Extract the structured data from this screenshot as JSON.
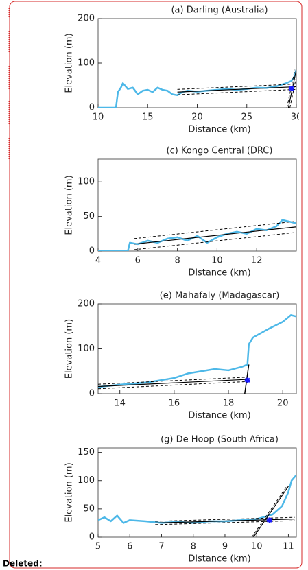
{
  "chart_data": [
    {
      "type": "line",
      "title": "(a) Darling (Australia)",
      "xlabel": "Distance (km)",
      "ylabel": "Elevation (m)",
      "xlim": [
        10,
        30
      ],
      "ylim": [
        0,
        200
      ],
      "xticks": [
        10,
        15,
        20,
        25,
        30
      ],
      "yticks": [
        0,
        100,
        200
      ],
      "series": [
        {
          "color": "#4db8e8",
          "width": 2.5,
          "x": [
            10,
            11.8,
            12,
            12.3,
            12.5,
            13,
            13.5,
            14,
            14.5,
            15,
            15.5,
            16,
            16.5,
            17,
            17.5,
            18,
            18.5,
            19,
            20,
            21,
            22,
            23,
            24,
            25,
            26,
            27,
            28,
            29,
            29.5,
            29.8,
            30
          ],
          "values": [
            0,
            0,
            35,
            45,
            55,
            42,
            45,
            30,
            38,
            40,
            35,
            45,
            40,
            38,
            30,
            28,
            35,
            38,
            36,
            38,
            40,
            42,
            40,
            42,
            45,
            44,
            48,
            55,
            60,
            70,
            85
          ]
        },
        {
          "color": "#000000",
          "width": 1.2,
          "x": [
            18,
            30
          ],
          "values": [
            35,
            47
          ]
        },
        {
          "color": "#000000",
          "width": 1,
          "dashed": true,
          "x": [
            18,
            30
          ],
          "values": [
            41,
            53
          ]
        },
        {
          "color": "#000000",
          "width": 1,
          "dashed": true,
          "x": [
            18,
            30
          ],
          "values": [
            29,
            41
          ]
        },
        {
          "color": "#000000",
          "width": 1.2,
          "x": [
            29.2,
            30
          ],
          "values": [
            0,
            85
          ]
        },
        {
          "color": "#000000",
          "width": 1,
          "dashed": true,
          "x": [
            29.05,
            29.85
          ],
          "values": [
            0,
            85
          ]
        },
        {
          "color": "#000000",
          "width": 1,
          "dashed": true,
          "x": [
            29.35,
            30.15
          ],
          "values": [
            0,
            85
          ]
        },
        {
          "color": "#1a1aff",
          "marker": true,
          "x": [
            29.5
          ],
          "values": [
            43
          ]
        }
      ]
    },
    {
      "type": "line",
      "title": "(c) Kongo Central (DRC)",
      "xlabel": "Distance (km)",
      "ylabel": "Elevation (m)",
      "xlim": [
        4,
        14
      ],
      "ylim": [
        0,
        133
      ],
      "xticks": [
        4,
        6,
        8,
        10,
        12
      ],
      "yticks": [
        0,
        50,
        100
      ],
      "series": [
        {
          "color": "#4db8e8",
          "width": 2.5,
          "x": [
            4,
            5.5,
            5.6,
            6,
            6.5,
            7,
            7.5,
            8,
            8.5,
            9,
            9.5,
            10,
            10.5,
            11,
            11.5,
            12,
            12.5,
            13,
            13.3,
            14
          ],
          "values": [
            0,
            0,
            12,
            10,
            15,
            12,
            18,
            20,
            15,
            22,
            12,
            20,
            25,
            28,
            25,
            32,
            30,
            36,
            45,
            40
          ]
        },
        {
          "color": "#000000",
          "width": 1.2,
          "x": [
            5.8,
            14
          ],
          "values": [
            10,
            35
          ]
        },
        {
          "color": "#000000",
          "width": 1,
          "dashed": true,
          "x": [
            5.8,
            14
          ],
          "values": [
            18,
            43
          ]
        },
        {
          "color": "#000000",
          "width": 1,
          "dashed": true,
          "x": [
            5.8,
            14
          ],
          "values": [
            2,
            27
          ]
        }
      ]
    },
    {
      "type": "line",
      "title": "(e) Mahafaly (Madagascar)",
      "xlabel": "Distance (km)",
      "ylabel": "Elevation (m)",
      "xlim": [
        13.2,
        20.5
      ],
      "ylim": [
        0,
        200
      ],
      "xticks": [
        14,
        16,
        18,
        20
      ],
      "yticks": [
        0,
        100,
        200
      ],
      "series": [
        {
          "color": "#4db8e8",
          "width": 2.5,
          "x": [
            13.2,
            14,
            15,
            16,
            16.5,
            17,
            17.5,
            18,
            18.5,
            18.7,
            18.75,
            18.9,
            19.2,
            19.5,
            20,
            20.3,
            20.5
          ],
          "values": [
            15,
            20,
            25,
            35,
            45,
            50,
            55,
            52,
            60,
            65,
            110,
            125,
            135,
            145,
            160,
            175,
            172
          ]
        },
        {
          "color": "#000000",
          "width": 1.2,
          "x": [
            13.2,
            18.7
          ],
          "values": [
            16,
            32
          ]
        },
        {
          "color": "#000000",
          "width": 1,
          "dashed": true,
          "x": [
            13.2,
            18.7
          ],
          "values": [
            21,
            37
          ]
        },
        {
          "color": "#000000",
          "width": 1,
          "dashed": true,
          "x": [
            13.2,
            18.7
          ],
          "values": [
            11,
            27
          ]
        },
        {
          "color": "#000000",
          "width": 1.5,
          "x": [
            18.6,
            18.75
          ],
          "values": [
            0,
            65
          ]
        },
        {
          "color": "#1a1aff",
          "marker": true,
          "x": [
            18.7
          ],
          "values": [
            30
          ]
        }
      ]
    },
    {
      "type": "line",
      "title": "(g) De Hoop (South Africa)",
      "xlabel": "Distance (km)",
      "ylabel": "Elevation (m)",
      "xlim": [
        5,
        11.25
      ],
      "ylim": [
        0,
        158
      ],
      "xticks": [
        5,
        6,
        7,
        8,
        9,
        10,
        11
      ],
      "yticks": [
        0,
        50,
        100,
        150
      ],
      "series": [
        {
          "color": "#4db8e8",
          "width": 2.5,
          "x": [
            5,
            5.2,
            5.4,
            5.6,
            5.8,
            6,
            6.5,
            7,
            7.5,
            8,
            8.5,
            9,
            9.5,
            10,
            10.2,
            10.5,
            10.8,
            11,
            11.1,
            11.25
          ],
          "values": [
            30,
            35,
            28,
            38,
            25,
            30,
            28,
            25,
            27,
            25,
            28,
            28,
            30,
            32,
            35,
            40,
            55,
            80,
            100,
            110
          ]
        },
        {
          "color": "#000000",
          "width": 1.2,
          "x": [
            6.8,
            11.2
          ],
          "values": [
            25,
            32
          ]
        },
        {
          "color": "#000000",
          "width": 1,
          "dashed": true,
          "x": [
            6.8,
            11.2
          ],
          "values": [
            28,
            35
          ]
        },
        {
          "color": "#000000",
          "width": 1,
          "dashed": true,
          "x": [
            6.8,
            11.2
          ],
          "values": [
            22,
            29
          ]
        },
        {
          "color": "#000000",
          "width": 1.2,
          "x": [
            9.9,
            11
          ],
          "values": [
            0,
            90
          ]
        },
        {
          "color": "#000000",
          "width": 1,
          "dashed": true,
          "x": [
            9.85,
            10.95
          ],
          "values": [
            0,
            90
          ]
        },
        {
          "color": "#1a1aff",
          "marker": true,
          "x": [
            10.4
          ],
          "values": [
            30
          ]
        }
      ]
    }
  ],
  "margin_note": "Deleted:"
}
